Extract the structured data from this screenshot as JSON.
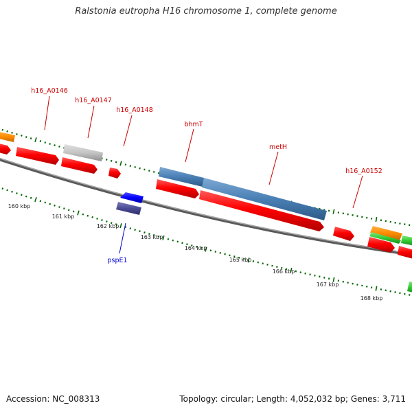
{
  "header": {
    "title": "Ralstonia eutropha H16 chromosome 1, complete genome"
  },
  "footer": {
    "accession": "Accession: NC_008313",
    "summary": "Topology: circular; Length: 4,052,032 bp; Genes: 3,711"
  },
  "scale": {
    "ticks": [
      "160 kbp",
      "161 kbp",
      "162 kbp",
      "163 kbp",
      "164 kbp",
      "165 kbp",
      "166 kbp",
      "167 kbp",
      "168 kbp"
    ]
  },
  "genes": {
    "labels": [
      "h16_A0146",
      "h16_A0147",
      "h16_A0148",
      "bhmT",
      "metH",
      "h16_A0152",
      "pspE1"
    ]
  },
  "colors": {
    "cds": "#ff0000",
    "blue_feature": "#4a7fb5",
    "gray_feature": "#bdbdbd",
    "orange_feature": "#ff8c00",
    "green_feature": "#33cc33",
    "navy_feature": "#3b3b8c",
    "pspE1": "#0000ff",
    "backbone": "#777777",
    "tick_marks": "#006600"
  }
}
